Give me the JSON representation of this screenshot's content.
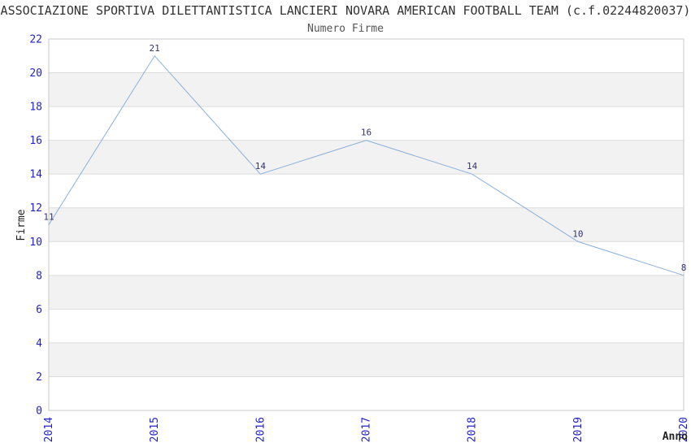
{
  "chart_data": {
    "type": "line",
    "title": "ASSOCIAZIONE SPORTIVA DILETTANTISTICA LANCIERI NOVARA AMERICAN FOOTBALL TEAM (c.f.02244820037)",
    "subtitle": "Numero Firme",
    "xlabel": "Anno",
    "ylabel": "Firme",
    "x": [
      2014,
      2015,
      2016,
      2017,
      2018,
      2019,
      2020
    ],
    "series": [
      {
        "name": "Numero Firme",
        "values": [
          11,
          21,
          14,
          16,
          14,
          10,
          8
        ]
      }
    ],
    "ylim": [
      0,
      22
    ],
    "y_ticks": [
      0,
      2,
      4,
      6,
      8,
      10,
      12,
      14,
      16,
      18,
      20,
      22
    ],
    "grid": "horizontal",
    "legend": "none",
    "band_ranges": [
      [
        2,
        4
      ],
      [
        6,
        8
      ],
      [
        10,
        12
      ],
      [
        14,
        16
      ],
      [
        18,
        20
      ]
    ],
    "colors": {
      "line": "#88b0e0",
      "tick_label": "#2222cc",
      "data_label": "#333377",
      "band": "#f2f2f2",
      "gridline": "#dcdcdc",
      "border": "#c8c8c8",
      "title": "#333333",
      "subtitle": "#555555",
      "axis_title": "#222222"
    }
  }
}
